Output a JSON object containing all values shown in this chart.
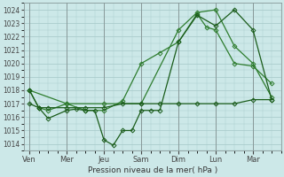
{
  "background_color": "#cce8e8",
  "grid_color": "#aacccc",
  "line_dark": "#1a5c1a",
  "line_medium": "#2e7d2e",
  "xlabel": "Pression niveau de la mer( hPa )",
  "ylim": [
    1013.5,
    1024.5
  ],
  "yticks": [
    1014,
    1015,
    1016,
    1017,
    1018,
    1019,
    1020,
    1021,
    1022,
    1023,
    1024
  ],
  "day_labels": [
    "Ven",
    "Mer",
    "Jeu",
    "Sam",
    "Dim",
    "Lun",
    "Mar"
  ],
  "day_x": [
    0,
    2,
    4,
    6,
    8,
    10,
    12
  ],
  "xlim": [
    -0.3,
    13.5
  ],
  "series1_x": [
    0,
    0.5,
    1,
    2,
    2.5,
    3,
    3.5,
    4,
    4.5,
    5,
    5.5,
    6,
    6.5,
    7,
    8,
    9,
    10,
    11,
    12,
    13
  ],
  "series1_y": [
    1018.0,
    1016.7,
    1015.9,
    1016.5,
    1016.6,
    1016.5,
    1016.5,
    1014.3,
    1013.9,
    1015.0,
    1015.0,
    1016.5,
    1016.5,
    1016.5,
    1021.6,
    1023.6,
    1022.8,
    1024.0,
    1022.5,
    1017.3
  ],
  "series2_x": [
    0,
    0.5,
    1,
    2,
    3,
    4,
    5,
    6,
    7,
    8,
    9,
    10,
    11,
    12,
    13
  ],
  "series2_y": [
    1017.0,
    1016.7,
    1016.7,
    1016.7,
    1016.7,
    1016.7,
    1017.0,
    1017.0,
    1017.0,
    1017.0,
    1017.0,
    1017.0,
    1017.0,
    1017.3,
    1017.3
  ],
  "series3_x": [
    0,
    0.5,
    1,
    2,
    3,
    4,
    5,
    6,
    7,
    8,
    9,
    9.5,
    10,
    11,
    12,
    13
  ],
  "series3_y": [
    1018.0,
    1016.7,
    1016.5,
    1017.0,
    1016.5,
    1016.5,
    1017.2,
    1020.0,
    1020.8,
    1021.6,
    1023.7,
    1022.7,
    1022.5,
    1020.0,
    1019.8,
    1018.5
  ],
  "series4_x": [
    0,
    2,
    4,
    6,
    8,
    9,
    10,
    11,
    12,
    13
  ],
  "series4_y": [
    1018.0,
    1017.0,
    1017.0,
    1017.0,
    1022.5,
    1023.8,
    1024.0,
    1021.3,
    1020.0,
    1017.5
  ]
}
